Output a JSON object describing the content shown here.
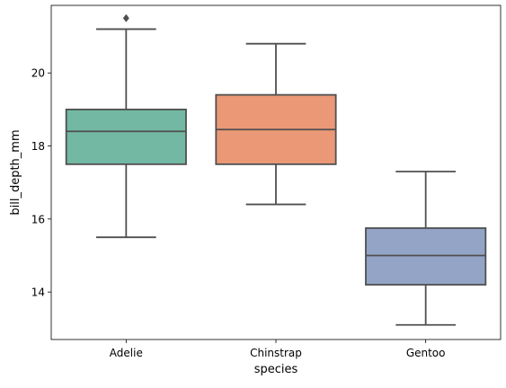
{
  "chart_data": {
    "type": "box",
    "xlabel": "species",
    "ylabel": "bill_depth_mm",
    "ylim": [
      12.7,
      21.85
    ],
    "yticks": [
      14,
      16,
      18,
      20
    ],
    "grid": false,
    "categories": [
      "Adelie",
      "Chinstrap",
      "Gentoo"
    ],
    "boxes": [
      {
        "category": "Adelie",
        "whisker_low": 15.5,
        "q1": 17.5,
        "median": 18.4,
        "q3": 19.0,
        "whisker_high": 21.2,
        "outliers": [
          21.5
        ],
        "color": "#72b8a2"
      },
      {
        "category": "Chinstrap",
        "whisker_low": 16.4,
        "q1": 17.5,
        "median": 18.45,
        "q3": 19.4,
        "whisker_high": 20.8,
        "outliers": [],
        "color": "#eb9877"
      },
      {
        "category": "Gentoo",
        "whisker_low": 13.1,
        "q1": 14.2,
        "median": 15.0,
        "q3": 15.75,
        "whisker_high": 17.3,
        "outliers": [],
        "color": "#93a4c7"
      }
    ]
  }
}
